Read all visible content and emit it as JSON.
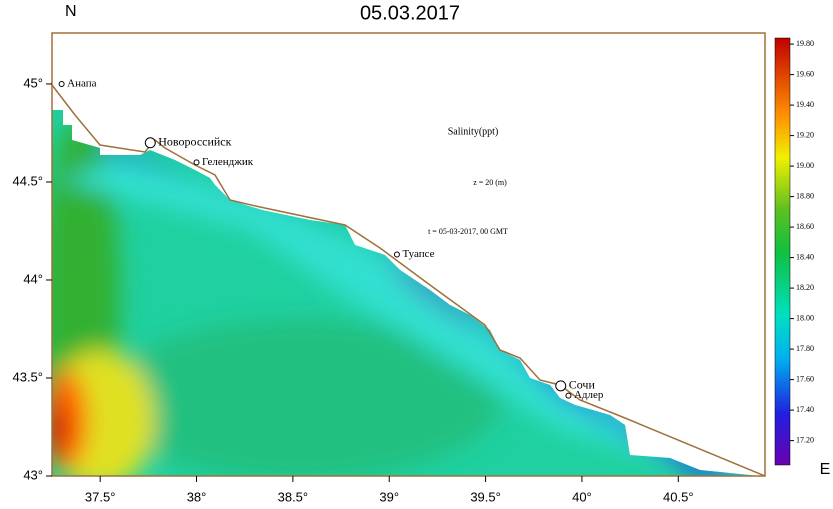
{
  "title": "05.03.2017",
  "north_label": "N",
  "east_label": "E",
  "xlim": [
    37.25,
    40.95
  ],
  "ylim": [
    43,
    45.26
  ],
  "lat_ticks": [
    {
      "value": 45,
      "label": "45°"
    },
    {
      "value": 44.5,
      "label": "44.5°"
    },
    {
      "value": 44,
      "label": "44°"
    },
    {
      "value": 43.5,
      "label": "43.5°"
    },
    {
      "value": 43,
      "label": "43°"
    }
  ],
  "lon_ticks": [
    {
      "value": 37.5,
      "label": "37.5°"
    },
    {
      "value": 38,
      "label": "38°"
    },
    {
      "value": 38.5,
      "label": "38.5°"
    },
    {
      "value": 39,
      "label": "39°"
    },
    {
      "value": 39.5,
      "label": "39.5°"
    },
    {
      "value": 40,
      "label": "40°"
    },
    {
      "value": 40.5,
      "label": "40.5°"
    }
  ],
  "cities": [
    {
      "name": "Анапа",
      "lon": 37.3,
      "lat": 45.0,
      "marker": "small"
    },
    {
      "name": "Новороссийск",
      "lon": 37.76,
      "lat": 44.7,
      "marker": "large"
    },
    {
      "name": "Геленджик",
      "lon": 38.0,
      "lat": 44.6,
      "marker": "small"
    },
    {
      "name": "Туапсе",
      "lon": 39.04,
      "lat": 44.13,
      "marker": "small"
    },
    {
      "name": "Сочи",
      "lon": 39.89,
      "lat": 43.46,
      "marker": "large"
    },
    {
      "name": "Адлер",
      "lon": 39.93,
      "lat": 43.41,
      "marker": "small"
    }
  ],
  "annotations": [
    "Salinity(ppt)",
    "z = 20 (m)",
    "t = 05-03-2017, 00 GMT"
  ],
  "colorbar": {
    "lim": [
      17.04,
      19.84
    ],
    "ticks": [
      {
        "value": 17.2,
        "label": "17.20"
      },
      {
        "value": 17.4,
        "label": "17.40"
      },
      {
        "value": 17.6,
        "label": "17.60"
      },
      {
        "value": 17.8,
        "label": "17.80"
      },
      {
        "value": 18,
        "label": "18.00"
      },
      {
        "value": 18.2,
        "label": "18.20"
      },
      {
        "value": 18.4,
        "label": "18.40"
      },
      {
        "value": 18.6,
        "label": "18.60"
      },
      {
        "value": 18.8,
        "label": "18.80"
      },
      {
        "value": 19,
        "label": "19.00"
      },
      {
        "value": 19.2,
        "label": "19.20"
      },
      {
        "value": 19.4,
        "label": "19.40"
      },
      {
        "value": 19.6,
        "label": "19.60"
      },
      {
        "value": 19.8,
        "label": "19.80"
      }
    ]
  }
}
